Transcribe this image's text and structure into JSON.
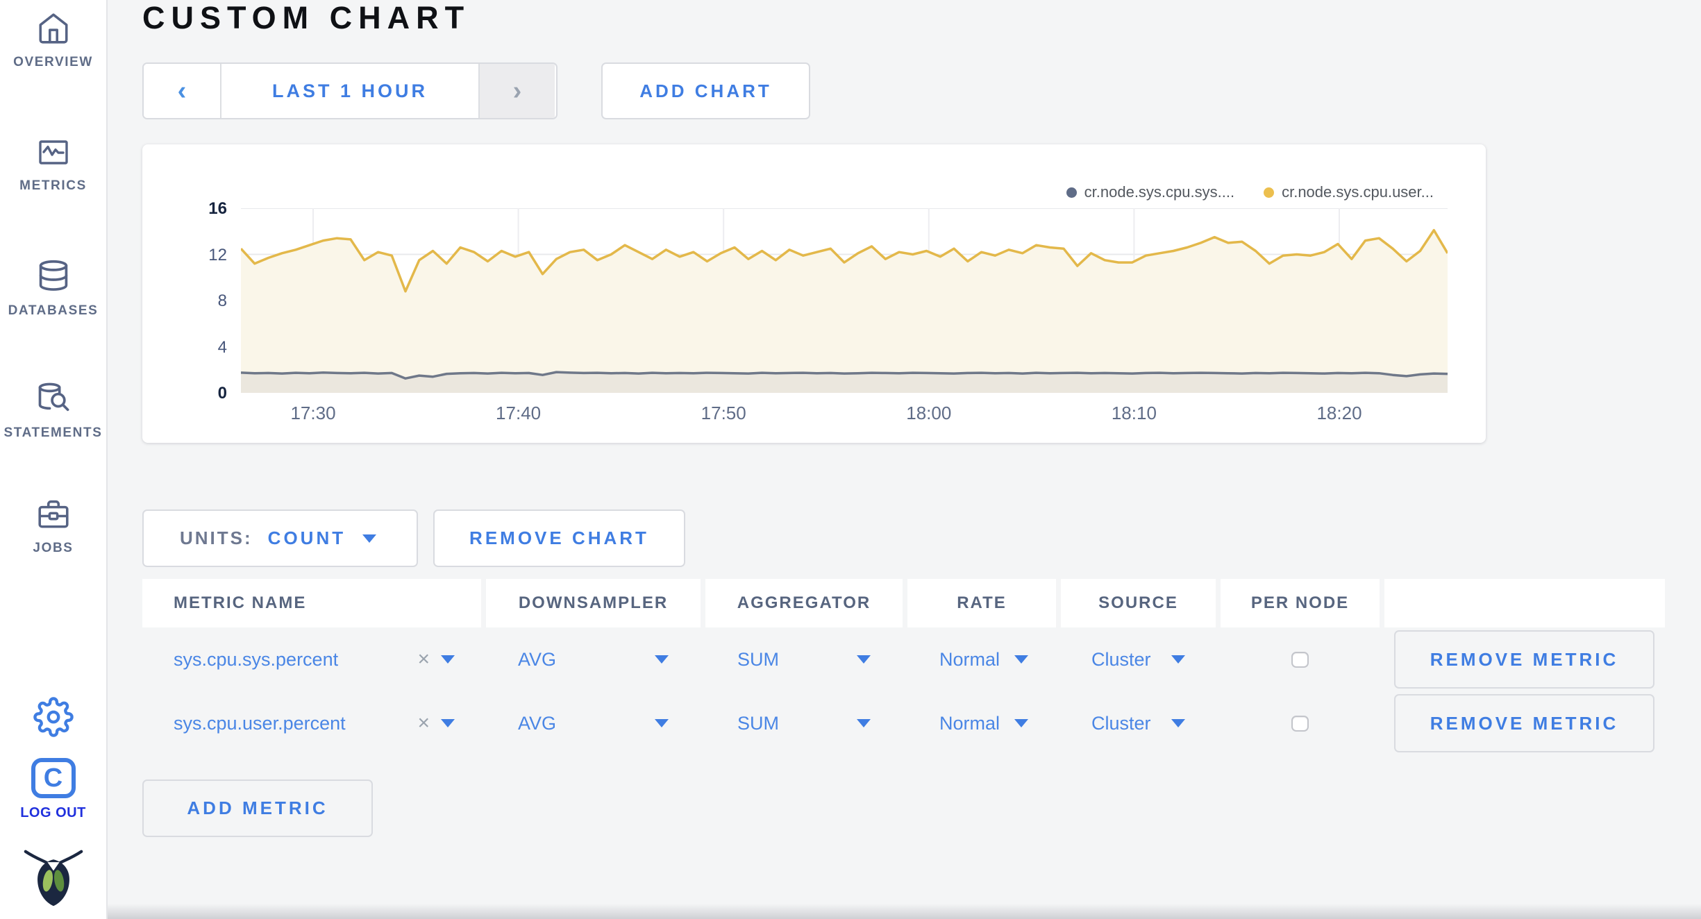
{
  "colors": {
    "accent_blue": "#3f7de2",
    "logout_blue": "#2030dd",
    "slate": "#5f6c87",
    "yellow_line": "#e3b84a",
    "gray_line": "#6f7889",
    "cream_fill": "#faf6e9",
    "gray_fill": "#ebe7de",
    "page_bg": "#f4f5f6"
  },
  "sidebar": {
    "items": [
      {
        "label": "OVERVIEW",
        "icon": "home-icon"
      },
      {
        "label": "METRICS",
        "icon": "metrics-icon"
      },
      {
        "label": "DATABASES",
        "icon": "database-icon"
      },
      {
        "label": "STATEMENTS",
        "icon": "statements-icon"
      },
      {
        "label": "JOBS",
        "icon": "jobs-icon"
      }
    ],
    "logout_label": "LOG OUT",
    "logo_letter": "C"
  },
  "header": {
    "title": "CUSTOM CHART"
  },
  "controls": {
    "prev_glyph": "‹",
    "time_range": "LAST 1 HOUR",
    "next_glyph": "›",
    "add_chart": "ADD CHART"
  },
  "chart_data": {
    "type": "line",
    "title": "",
    "xlabel": "",
    "ylabel": "",
    "ylim": [
      0,
      16
    ],
    "y_ticks": [
      0,
      4,
      8,
      12,
      16
    ],
    "x_ticks": [
      "17:30",
      "17:40",
      "17:50",
      "18:00",
      "18:10",
      "18:20"
    ],
    "start_time": "17:26:20",
    "interval_seconds": 40,
    "grid": true,
    "legend_position": "top-right",
    "series": [
      {
        "name": "cr.node.sys.cpu.sys....",
        "color": "#5f6c87",
        "line_color": "#6f7889",
        "fill": "#ebe7de",
        "values": [
          1.75,
          1.7,
          1.72,
          1.68,
          1.74,
          1.7,
          1.76,
          1.72,
          1.7,
          1.74,
          1.68,
          1.72,
          1.25,
          1.5,
          1.4,
          1.65,
          1.7,
          1.72,
          1.68,
          1.74,
          1.7,
          1.72,
          1.55,
          1.8,
          1.75,
          1.72,
          1.74,
          1.7,
          1.72,
          1.68,
          1.74,
          1.7,
          1.72,
          1.7,
          1.74,
          1.72,
          1.7,
          1.68,
          1.74,
          1.7,
          1.72,
          1.74,
          1.7,
          1.72,
          1.68,
          1.7,
          1.74,
          1.72,
          1.7,
          1.74,
          1.72,
          1.7,
          1.68,
          1.72,
          1.74,
          1.7,
          1.72,
          1.68,
          1.74,
          1.7,
          1.72,
          1.74,
          1.7,
          1.72,
          1.7,
          1.68,
          1.72,
          1.74,
          1.7,
          1.72,
          1.74,
          1.72,
          1.7,
          1.68,
          1.72,
          1.7,
          1.74,
          1.72,
          1.7,
          1.68,
          1.72,
          1.7,
          1.74,
          1.7,
          1.55,
          1.45,
          1.6,
          1.68,
          1.65
        ]
      },
      {
        "name": "cr.node.sys.cpu.user...",
        "color": "#ecbf4e",
        "line_color": "#e3b84a",
        "fill": "#faf6e9",
        "values": [
          12.5,
          11.2,
          11.7,
          12.1,
          12.4,
          12.8,
          13.2,
          13.4,
          13.3,
          11.5,
          12.2,
          11.9,
          8.8,
          11.5,
          12.3,
          11.2,
          12.6,
          12.2,
          11.4,
          12.3,
          11.8,
          12.2,
          10.3,
          11.6,
          12.2,
          12.4,
          11.5,
          12.0,
          12.8,
          12.2,
          11.6,
          12.4,
          11.8,
          12.2,
          11.4,
          12.1,
          12.6,
          11.6,
          12.3,
          11.5,
          12.4,
          11.9,
          12.2,
          12.5,
          11.3,
          12.1,
          12.7,
          11.6,
          12.2,
          12.0,
          12.3,
          11.8,
          12.5,
          11.4,
          12.2,
          11.9,
          12.4,
          12.1,
          12.8,
          12.6,
          12.5,
          11.0,
          12.1,
          11.5,
          11.3,
          11.3,
          11.9,
          12.1,
          12.3,
          12.6,
          13.0,
          13.5,
          13.0,
          13.1,
          12.3,
          11.2,
          11.9,
          12.0,
          11.9,
          12.2,
          12.9,
          11.6,
          13.2,
          13.4,
          12.5,
          11.4,
          12.3,
          14.1,
          12.1
        ]
      }
    ]
  },
  "units_bar": {
    "units_label": "UNITS:",
    "units_value": "COUNT",
    "remove_chart": "REMOVE CHART"
  },
  "table": {
    "headers": [
      "METRIC NAME",
      "DOWNSAMPLER",
      "AGGREGATOR",
      "RATE",
      "SOURCE",
      "PER NODE",
      ""
    ],
    "close_glyph": "×",
    "rows": [
      {
        "metric": "sys.cpu.sys.percent",
        "downsampler": "AVG",
        "aggregator": "SUM",
        "rate": "Normal",
        "source": "Cluster",
        "per_node_checked": false,
        "remove_label": "REMOVE METRIC"
      },
      {
        "metric": "sys.cpu.user.percent",
        "downsampler": "AVG",
        "aggregator": "SUM",
        "rate": "Normal",
        "source": "Cluster",
        "per_node_checked": false,
        "remove_label": "REMOVE METRIC"
      }
    ],
    "add_metric": "ADD METRIC"
  }
}
